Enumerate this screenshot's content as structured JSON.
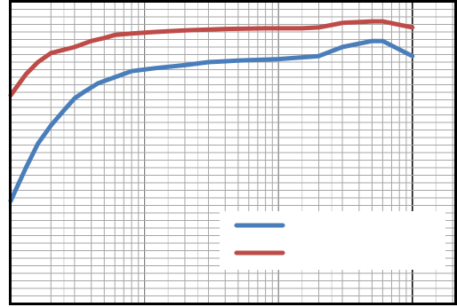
{
  "chart_data": {
    "type": "line",
    "title": "",
    "xlabel": "",
    "ylabel": "",
    "x_scale": "log",
    "xlim": [
      1,
      1000
    ],
    "ylim": [
      0,
      1
    ],
    "grid": true,
    "legend_position": "lower-right",
    "series": [
      {
        "color": "#4a7ebb",
        "points": [
          [
            1.0,
            0.34
          ],
          [
            1.3,
            0.45
          ],
          [
            1.6,
            0.53
          ],
          [
            2.0,
            0.59
          ],
          [
            2.5,
            0.64
          ],
          [
            3.0,
            0.68
          ],
          [
            3.5,
            0.7
          ],
          [
            4.5,
            0.73
          ],
          [
            6.0,
            0.75
          ],
          [
            8.0,
            0.77
          ],
          [
            12,
            0.78
          ],
          [
            20,
            0.79
          ],
          [
            30,
            0.8
          ],
          [
            50,
            0.805
          ],
          [
            100,
            0.81
          ],
          [
            200,
            0.82
          ],
          [
            300,
            0.85
          ],
          [
            500,
            0.87
          ],
          [
            600,
            0.87
          ],
          [
            1000,
            0.82
          ]
        ]
      },
      {
        "color": "#be4b48",
        "points": [
          [
            1.0,
            0.69
          ],
          [
            1.3,
            0.76
          ],
          [
            1.6,
            0.8
          ],
          [
            2.0,
            0.83
          ],
          [
            3.0,
            0.85
          ],
          [
            4.0,
            0.87
          ],
          [
            5.0,
            0.88
          ],
          [
            6.0,
            0.89
          ],
          [
            8.0,
            0.895
          ],
          [
            12,
            0.9
          ],
          [
            20,
            0.905
          ],
          [
            40,
            0.91
          ],
          [
            80,
            0.912
          ],
          [
            150,
            0.912
          ],
          [
            200,
            0.915
          ],
          [
            300,
            0.93
          ],
          [
            500,
            0.935
          ],
          [
            600,
            0.935
          ],
          [
            1000,
            0.915
          ]
        ]
      }
    ]
  }
}
